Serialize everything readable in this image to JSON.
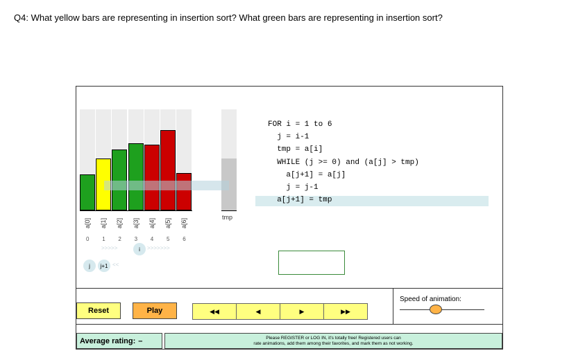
{
  "question": "Q4: What yellow bars are representing in insertion sort? What green bars are representing in insertion sort?",
  "bars": [
    {
      "label": "a[0]",
      "index": "0",
      "value": 52,
      "color": "#1ea01e"
    },
    {
      "label": "a[1]",
      "index": "1",
      "value": 75,
      "color": "#ffff00"
    },
    {
      "label": "a[2]",
      "index": "2",
      "value": 88,
      "color": "#1ea01e"
    },
    {
      "label": "a[3]",
      "index": "3",
      "value": 97,
      "color": "#1ea01e"
    },
    {
      "label": "a[4]",
      "index": "4",
      "value": 95,
      "color": "#cc0000"
    },
    {
      "label": "a[5]",
      "index": "5",
      "value": 116,
      "color": "#cc0000"
    },
    {
      "label": "a[6]",
      "index": "6",
      "value": 54,
      "color": "#cc0000"
    }
  ],
  "tmp": {
    "label": "tmp",
    "value": 75
  },
  "pointers": {
    "i": "i",
    "j": "j",
    "j1": "j+1"
  },
  "code": [
    "FOR i = 1 to 6",
    "  j = i-1",
    "  tmp = a[i]",
    "  WHILE (j >= 0) and (a[j] > tmp)",
    "    a[j+1] = a[j]",
    "    j = j-1",
    "  a[j+1] = tmp"
  ],
  "controls": {
    "reset": "Reset",
    "play": "Play",
    "speed_label": "Speed of animation:",
    "step_icons": [
      "◀◀",
      "◀",
      "▶",
      "▶▶"
    ]
  },
  "footer": {
    "rating_label": "Average rating:",
    "rating_value": "–",
    "register_line1": "Please REGISTER or LOG IN, it's totally free! Registered users can",
    "register_line2": "rate animations, add them among their favorites, and mark them as not working."
  },
  "colors": {
    "green": "#1ea01e",
    "yellow": "#ffff00",
    "red": "#cc0000",
    "play": "#ffb347",
    "reset": "#ffff80",
    "footer": "#c8f0dc"
  }
}
